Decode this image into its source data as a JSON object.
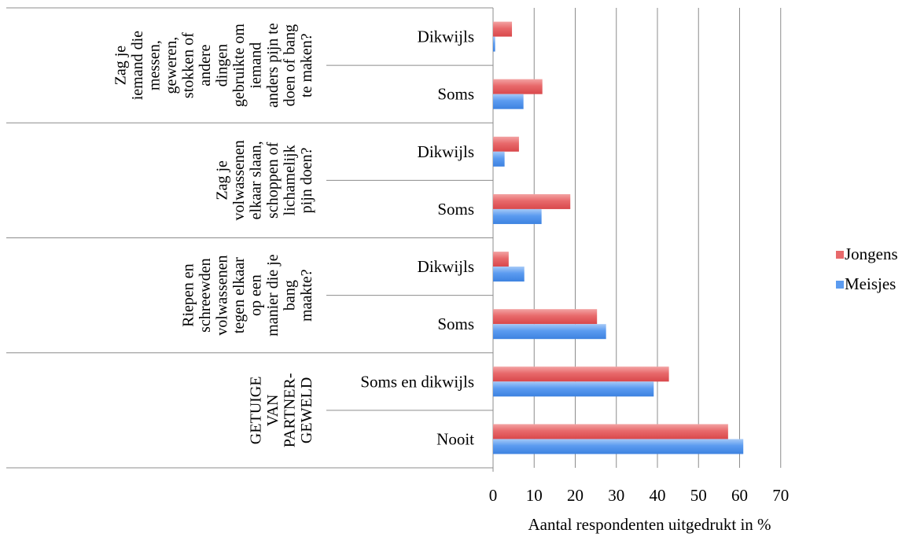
{
  "chart_data": {
    "type": "bar",
    "orientation": "horizontal",
    "xlabel": "Aantal respondenten uitgedrukt in %",
    "xlim": [
      0,
      70
    ],
    "xticks": [
      "0",
      "10",
      "20",
      "30",
      "40",
      "50",
      "60",
      "70"
    ],
    "grid": true,
    "legend_position": "right",
    "groups": [
      {
        "label": "GETUIGE VAN PARTNER-GEWELD",
        "lines": [
          "GETUIGE",
          "VAN",
          "PARTNER-",
          "GEWELD"
        ]
      },
      {
        "label": "Riepen en schreewden volwassenen tegen elkaar op een manier die je bang maakte?",
        "lines": [
          "Riepen en",
          "schreewden",
          "volwassenen",
          "tegen elkaar",
          "op een",
          "manier die je",
          "bang",
          "maakte?"
        ]
      },
      {
        "label": "Zag je volwassenen elkaar slaan, schoppen of lichamelijk pijn doen?",
        "lines": [
          "Zag je",
          "volwassenen",
          "elkaar slaan,",
          "schoppen of",
          "lichamelijk",
          "pijn doen?"
        ]
      },
      {
        "label": "Zag je iemand die messen, geweren, stokken of andere dingen gebruikte om iemand anders pijn te doen of bang te maken?",
        "lines": [
          "Zag je",
          "iemand die",
          "messen,",
          "geweren,",
          "stokken of",
          "andere",
          "dingen",
          "gebruikte om",
          "iemand",
          "anders pijn te",
          "doen of bang",
          "te maken?"
        ]
      }
    ],
    "categories": [
      "Nooit",
      "Soms en dikwijls",
      "Soms",
      "Dikwijls",
      "Soms",
      "Dikwijls",
      "Soms",
      "Dikwijls"
    ],
    "series": [
      {
        "name": "Jongens",
        "color": "#e8696b",
        "values": [
          57.2,
          42.8,
          25.3,
          3.8,
          18.8,
          6.3,
          12.0,
          4.6
        ]
      },
      {
        "name": "Meisjes",
        "color": "#5b9bf0",
        "values": [
          60.9,
          39.1,
          27.5,
          7.6,
          11.8,
          2.8,
          7.4,
          0.5
        ]
      }
    ]
  }
}
